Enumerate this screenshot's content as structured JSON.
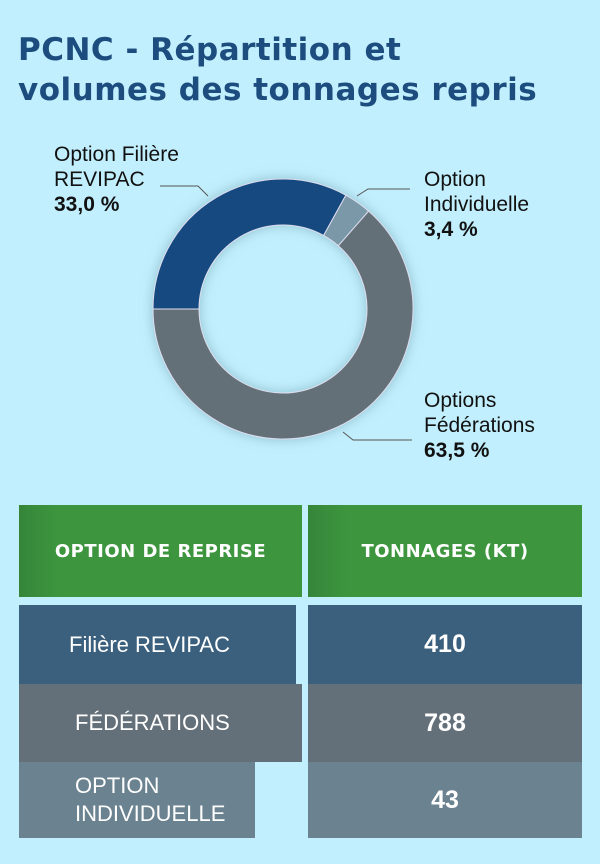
{
  "title_line1": "PCNC - Répartition et",
  "title_line2": "volumes des tonnages repris",
  "chart_data": {
    "type": "pie",
    "donut": true,
    "slices": [
      {
        "label_line1": "Option Filière",
        "label_line2": "REVIPAC",
        "pct_label": "33,0 %",
        "value": 33.0,
        "color": "#164a80"
      },
      {
        "label_line1": "Option",
        "label_line2": "Individuelle",
        "pct_label": "3,4 %",
        "value": 3.4,
        "color": "#7a98a8"
      },
      {
        "label_line1": "Options",
        "label_line2": "Fédérations",
        "pct_label": "63,5 %",
        "value": 63.5,
        "color": "#636f78"
      }
    ]
  },
  "table": {
    "headers": [
      "OPTION DE REPRISE",
      "TONNAGES (KT)"
    ],
    "header_color": "#3d963e",
    "rows": [
      {
        "option": "Filière REVIPAC",
        "tonnage": "410",
        "color": "#3b607e"
      },
      {
        "option": "FÉDÉRATIONS",
        "tonnage": "788",
        "color": "#647079"
      },
      {
        "option": "OPTION INDIVIDUELLE",
        "tonnage": "43",
        "color": "#6b8290"
      }
    ]
  }
}
